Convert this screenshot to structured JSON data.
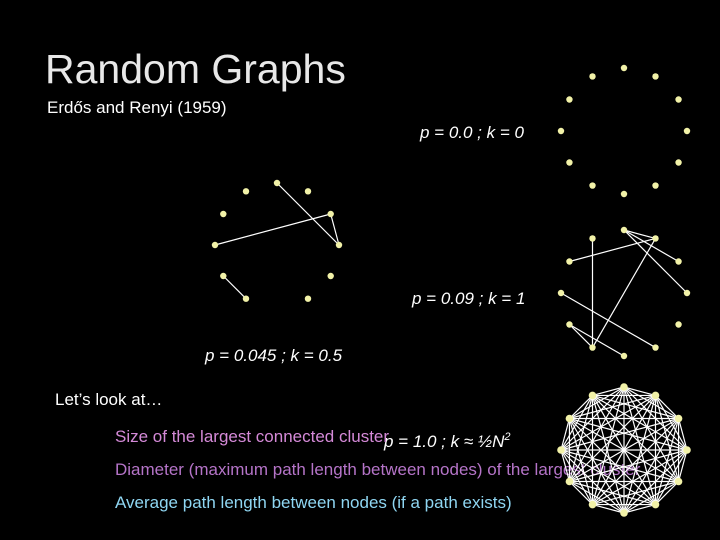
{
  "header": {
    "title": "Random Graphs",
    "subtitle": "Erdős and Renyi (1959)"
  },
  "graphs": [
    {
      "label": "p = 0.0 ; k = 0"
    },
    {
      "label": "p = 0.045 ; k = 0.5"
    },
    {
      "label": "p = 0.09 ; k = 1"
    },
    {
      "label": "p = 1.0 ; k ≈ ½N",
      "label_superscript": "2"
    }
  ],
  "body": {
    "intro": "Let’s look at…",
    "items": [
      "Size of the largest connected cluster",
      "Diameter (maximum path length between nodes) of the largest cluster",
      "Average path length between nodes (if a path exists)"
    ]
  }
}
